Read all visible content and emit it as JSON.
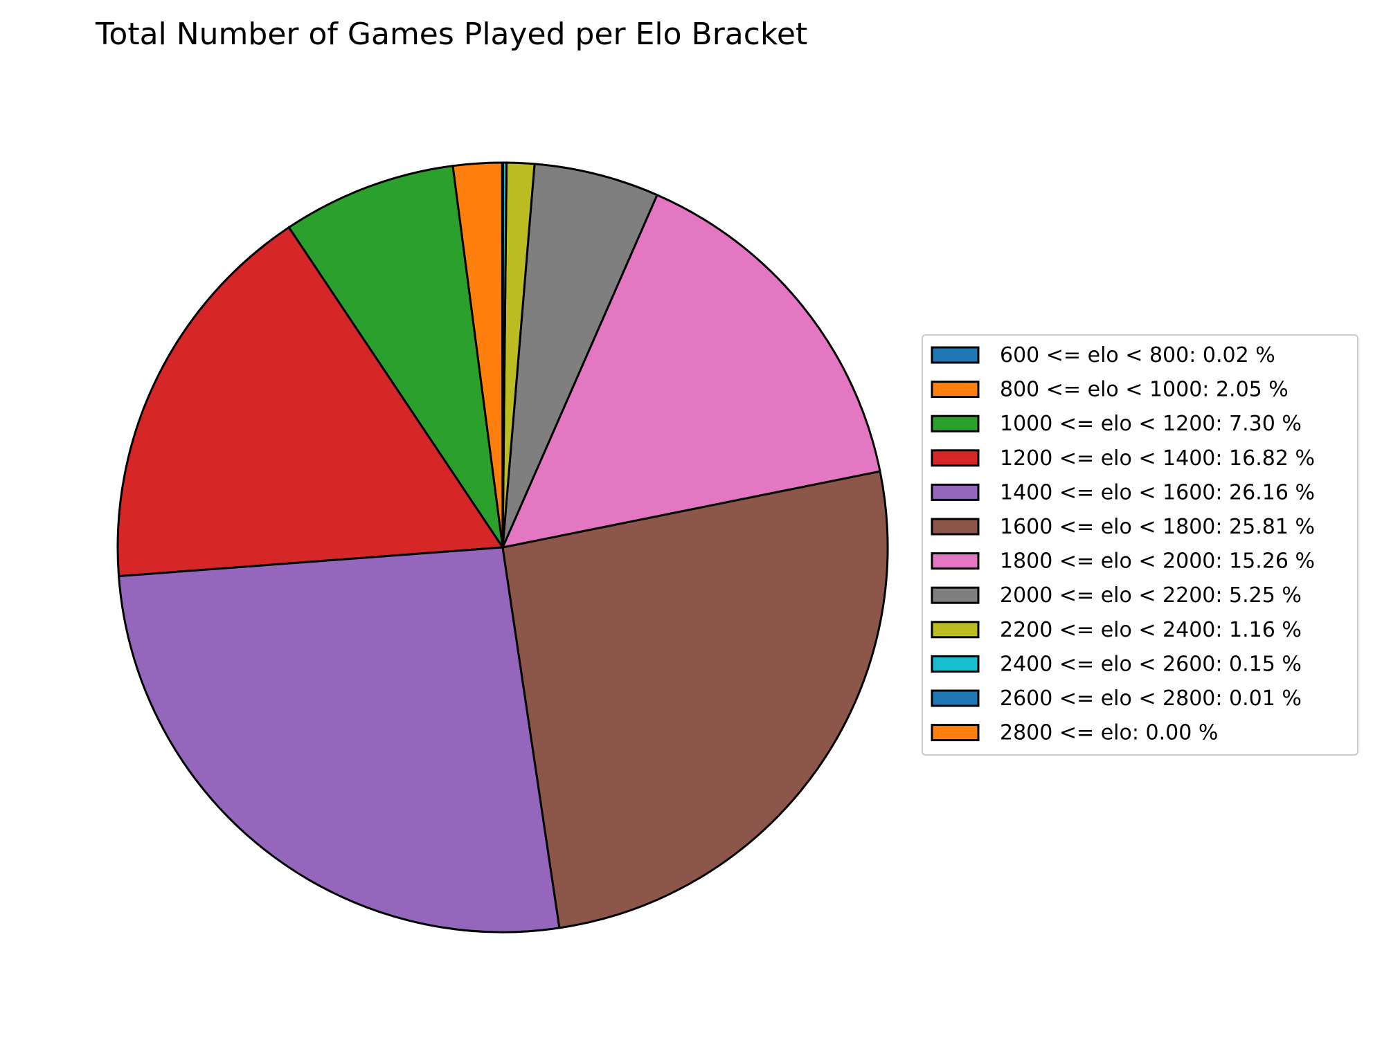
{
  "chart_data": {
    "type": "pie",
    "title": "Total Number of Games Played per Elo Bracket",
    "start_angle_deg": 90,
    "direction": "counterclockwise",
    "legend_position": "right",
    "slices": [
      {
        "label": "600 <= elo < 800: 0.02 %",
        "value": 0.02,
        "color": "#1f77b4"
      },
      {
        "label": "800 <= elo < 1000: 2.05 %",
        "value": 2.05,
        "color": "#ff7f0e"
      },
      {
        "label": "1000 <= elo < 1200: 7.30 %",
        "value": 7.3,
        "color": "#2ca02c"
      },
      {
        "label": "1200 <= elo < 1400: 16.82 %",
        "value": 16.82,
        "color": "#d62728"
      },
      {
        "label": "1400 <= elo < 1600: 26.16 %",
        "value": 26.16,
        "color": "#9467bd"
      },
      {
        "label": "1600 <= elo < 1800: 25.81 %",
        "value": 25.81,
        "color": "#8c564b"
      },
      {
        "label": "1800 <= elo < 2000: 15.26 %",
        "value": 15.26,
        "color": "#e377c2"
      },
      {
        "label": "2000 <= elo < 2200: 5.25 %",
        "value": 5.25,
        "color": "#7f7f7f"
      },
      {
        "label": "2200 <= elo < 2400: 1.16 %",
        "value": 1.16,
        "color": "#bcbd22"
      },
      {
        "label": "2400 <= elo < 2600: 0.15 %",
        "value": 0.15,
        "color": "#17becf"
      },
      {
        "label": "2600 <= elo < 2800: 0.01 %",
        "value": 0.01,
        "color": "#1f77b4"
      },
      {
        "label": "2800 <= elo: 0.00 %",
        "value": 0.0,
        "color": "#ff7f0e"
      }
    ]
  }
}
